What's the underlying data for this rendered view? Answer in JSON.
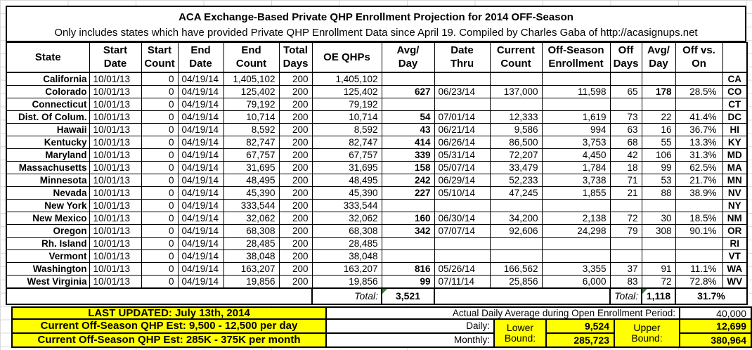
{
  "sheet_title": {
    "line1": "ACA Exchange-Based Private QHP Enrollment Projection for 2014 OFF-Season",
    "line2": "Only includes states which have provided Private QHP Enrollment Data since April 19. Compiled by Charles Gaba of http://acasignups.net"
  },
  "table": {
    "headers": [
      "State",
      "Start\nDate",
      "Start\nCount",
      "End\nDate",
      "End\nCount",
      "Total\nDays",
      "OE QHPs",
      "Avg/\nDay",
      "Date\nThru",
      "Current\nCount",
      "Off-Season\nEnrollment",
      "Off\nDays",
      "Avg/\nDay",
      "Off vs.\nOn",
      ""
    ],
    "rows": [
      {
        "state": "California",
        "start_date": "10/01/13",
        "start_count": "0",
        "end_date": "04/19/14",
        "end_count": "1,405,102",
        "total_days": "200",
        "oe_qhps": "1,405,102",
        "avg_day": "",
        "date_thru": "",
        "current_count": "",
        "off_season": "",
        "off_days": "",
        "off_avg_day": "",
        "off_avg_day_bold": false,
        "off_vs_on": "",
        "abbr": "CA"
      },
      {
        "state": "Colorado",
        "start_date": "10/01/13",
        "start_count": "0",
        "end_date": "04/19/14",
        "end_count": "125,402",
        "total_days": "200",
        "oe_qhps": "125,402",
        "avg_day": "627",
        "date_thru": "06/23/14",
        "current_count": "137,000",
        "off_season": "11,598",
        "off_days": "65",
        "off_avg_day": "178",
        "off_avg_day_bold": true,
        "off_vs_on": "28.5%",
        "abbr": "CO"
      },
      {
        "state": "Connecticut",
        "start_date": "10/01/13",
        "start_count": "0",
        "end_date": "04/19/14",
        "end_count": "79,192",
        "total_days": "200",
        "oe_qhps": "79,192",
        "avg_day": "",
        "date_thru": "",
        "current_count": "",
        "off_season": "",
        "off_days": "",
        "off_avg_day": "",
        "off_avg_day_bold": false,
        "off_vs_on": "",
        "abbr": "CT"
      },
      {
        "state": "Dist. Of Colum.",
        "start_date": "10/01/13",
        "start_count": "0",
        "end_date": "04/19/14",
        "end_count": "10,714",
        "total_days": "200",
        "oe_qhps": "10,714",
        "avg_day": "54",
        "date_thru": "07/01/14",
        "current_count": "12,333",
        "off_season": "1,619",
        "off_days": "73",
        "off_avg_day": "22",
        "off_avg_day_bold": false,
        "off_vs_on": "41.4%",
        "abbr": "DC"
      },
      {
        "state": "Hawaii",
        "start_date": "10/01/13",
        "start_count": "0",
        "end_date": "04/19/14",
        "end_count": "8,592",
        "total_days": "200",
        "oe_qhps": "8,592",
        "avg_day": "43",
        "date_thru": "06/21/14",
        "current_count": "9,586",
        "off_season": "994",
        "off_days": "63",
        "off_avg_day": "16",
        "off_avg_day_bold": false,
        "off_vs_on": "36.7%",
        "abbr": "HI"
      },
      {
        "state": "Kentucky",
        "start_date": "10/01/13",
        "start_count": "0",
        "end_date": "04/19/14",
        "end_count": "82,747",
        "total_days": "200",
        "oe_qhps": "82,747",
        "avg_day": "414",
        "date_thru": "06/26/14",
        "current_count": "86,500",
        "off_season": "3,753",
        "off_days": "68",
        "off_avg_day": "55",
        "off_avg_day_bold": false,
        "off_vs_on": "13.3%",
        "abbr": "KY"
      },
      {
        "state": "Maryland",
        "start_date": "10/01/13",
        "start_count": "0",
        "end_date": "04/19/14",
        "end_count": "67,757",
        "total_days": "200",
        "oe_qhps": "67,757",
        "avg_day": "339",
        "date_thru": "05/31/14",
        "current_count": "72,207",
        "off_season": "4,450",
        "off_days": "42",
        "off_avg_day": "106",
        "off_avg_day_bold": false,
        "off_vs_on": "31.3%",
        "abbr": "MD"
      },
      {
        "state": "Massachusetts",
        "start_date": "10/01/13",
        "start_count": "0",
        "end_date": "04/19/14",
        "end_count": "31,695",
        "total_days": "200",
        "oe_qhps": "31,695",
        "avg_day": "158",
        "date_thru": "05/07/14",
        "current_count": "33,479",
        "off_season": "1,784",
        "off_days": "18",
        "off_avg_day": "99",
        "off_avg_day_bold": false,
        "off_vs_on": "62.5%",
        "abbr": "MA"
      },
      {
        "state": "Minnesota",
        "start_date": "10/01/13",
        "start_count": "0",
        "end_date": "04/19/14",
        "end_count": "48,495",
        "total_days": "200",
        "oe_qhps": "48,495",
        "avg_day": "242",
        "date_thru": "06/29/14",
        "current_count": "52,233",
        "off_season": "3,738",
        "off_days": "71",
        "off_avg_day": "53",
        "off_avg_day_bold": false,
        "off_vs_on": "21.7%",
        "abbr": "MN"
      },
      {
        "state": "Nevada",
        "start_date": "10/01/13",
        "start_count": "0",
        "end_date": "04/19/14",
        "end_count": "45,390",
        "total_days": "200",
        "oe_qhps": "45,390",
        "avg_day": "227",
        "date_thru": "05/10/14",
        "current_count": "47,245",
        "off_season": "1,855",
        "off_days": "21",
        "off_avg_day": "88",
        "off_avg_day_bold": false,
        "off_vs_on": "38.9%",
        "abbr": "NV"
      },
      {
        "state": "New York",
        "start_date": "10/01/13",
        "start_count": "0",
        "end_date": "04/19/14",
        "end_count": "333,544",
        "total_days": "200",
        "oe_qhps": "333,544",
        "avg_day": "",
        "date_thru": "",
        "current_count": "",
        "off_season": "",
        "off_days": "",
        "off_avg_day": "",
        "off_avg_day_bold": false,
        "off_vs_on": "",
        "abbr": "NY"
      },
      {
        "state": "New Mexico",
        "start_date": "10/01/13",
        "start_count": "0",
        "end_date": "04/19/14",
        "end_count": "32,062",
        "total_days": "200",
        "oe_qhps": "32,062",
        "avg_day": "160",
        "date_thru": "06/30/14",
        "current_count": "34,200",
        "off_season": "2,138",
        "off_days": "72",
        "off_avg_day": "30",
        "off_avg_day_bold": false,
        "off_vs_on": "18.5%",
        "abbr": "NM"
      },
      {
        "state": "Oregon",
        "start_date": "10/01/13",
        "start_count": "0",
        "end_date": "04/19/14",
        "end_count": "68,308",
        "total_days": "200",
        "oe_qhps": "68,308",
        "avg_day": "342",
        "date_thru": "07/07/14",
        "current_count": "92,606",
        "off_season": "24,298",
        "off_days": "79",
        "off_avg_day": "308",
        "off_avg_day_bold": false,
        "off_vs_on": "90.1%",
        "abbr": "OR"
      },
      {
        "state": "Rh. Island",
        "start_date": "10/01/13",
        "start_count": "0",
        "end_date": "04/19/14",
        "end_count": "28,485",
        "total_days": "200",
        "oe_qhps": "28,485",
        "avg_day": "",
        "date_thru": "",
        "current_count": "",
        "off_season": "",
        "off_days": "",
        "off_avg_day": "",
        "off_avg_day_bold": false,
        "off_vs_on": "",
        "abbr": "RI"
      },
      {
        "state": "Vermont",
        "start_date": "10/01/13",
        "start_count": "0",
        "end_date": "04/19/14",
        "end_count": "38,048",
        "total_days": "200",
        "oe_qhps": "38,048",
        "avg_day": "",
        "date_thru": "",
        "current_count": "",
        "off_season": "",
        "off_days": "",
        "off_avg_day": "",
        "off_avg_day_bold": false,
        "off_vs_on": "",
        "abbr": "VT"
      },
      {
        "state": "Washington",
        "start_date": "10/01/13",
        "start_count": "0",
        "end_date": "04/19/14",
        "end_count": "163,207",
        "total_days": "200",
        "oe_qhps": "163,207",
        "avg_day": "816",
        "date_thru": "05/26/14",
        "current_count": "166,562",
        "off_season": "3,355",
        "off_days": "37",
        "off_avg_day": "91",
        "off_avg_day_bold": false,
        "off_vs_on": "11.1%",
        "abbr": "WA"
      },
      {
        "state": "West Virginia",
        "start_date": "10/01/13",
        "start_count": "0",
        "end_date": "04/19/14",
        "end_count": "19,856",
        "total_days": "200",
        "oe_qhps": "19,856",
        "avg_day": "99",
        "date_thru": "07/11/14",
        "current_count": "25,856",
        "off_season": "6,000",
        "off_days": "83",
        "off_avg_day": "72",
        "off_avg_day_bold": false,
        "off_vs_on": "72.8%",
        "abbr": "WV"
      }
    ],
    "totals": {
      "label1": "Total:",
      "oe_avg_day": "3,521",
      "label2": "Total:",
      "off_avg_day": "1,118",
      "off_vs_on": "31.7%"
    }
  },
  "footer": {
    "last_updated": "LAST UPDATED: July 13th, 2014",
    "daily_estimate": "Current Off-Season QHP Est: 9,500 - 12,500 per day",
    "monthly_estimate": "Current Off-Season QHP Est: 285K - 375K per month",
    "open_enrollment_avg_label": "Actual Daily Average during Open Enrollment Period:",
    "open_enrollment_avg_value": "40,000",
    "daily_label": "Daily:",
    "monthly_label": "Monthly:",
    "lower_bound_label": "Lower\nBound:",
    "upper_bound_label": "Upper\nBound:",
    "daily_lower": "9,524",
    "daily_upper": "12,699",
    "monthly_lower": "285,723",
    "monthly_upper": "380,964"
  },
  "colors": {
    "highlight_yellow": "#FFFF00",
    "border_black": "#000000",
    "flag_triangle_green": "#2E8B2E",
    "gridline_gray": "#D9D9D9"
  }
}
